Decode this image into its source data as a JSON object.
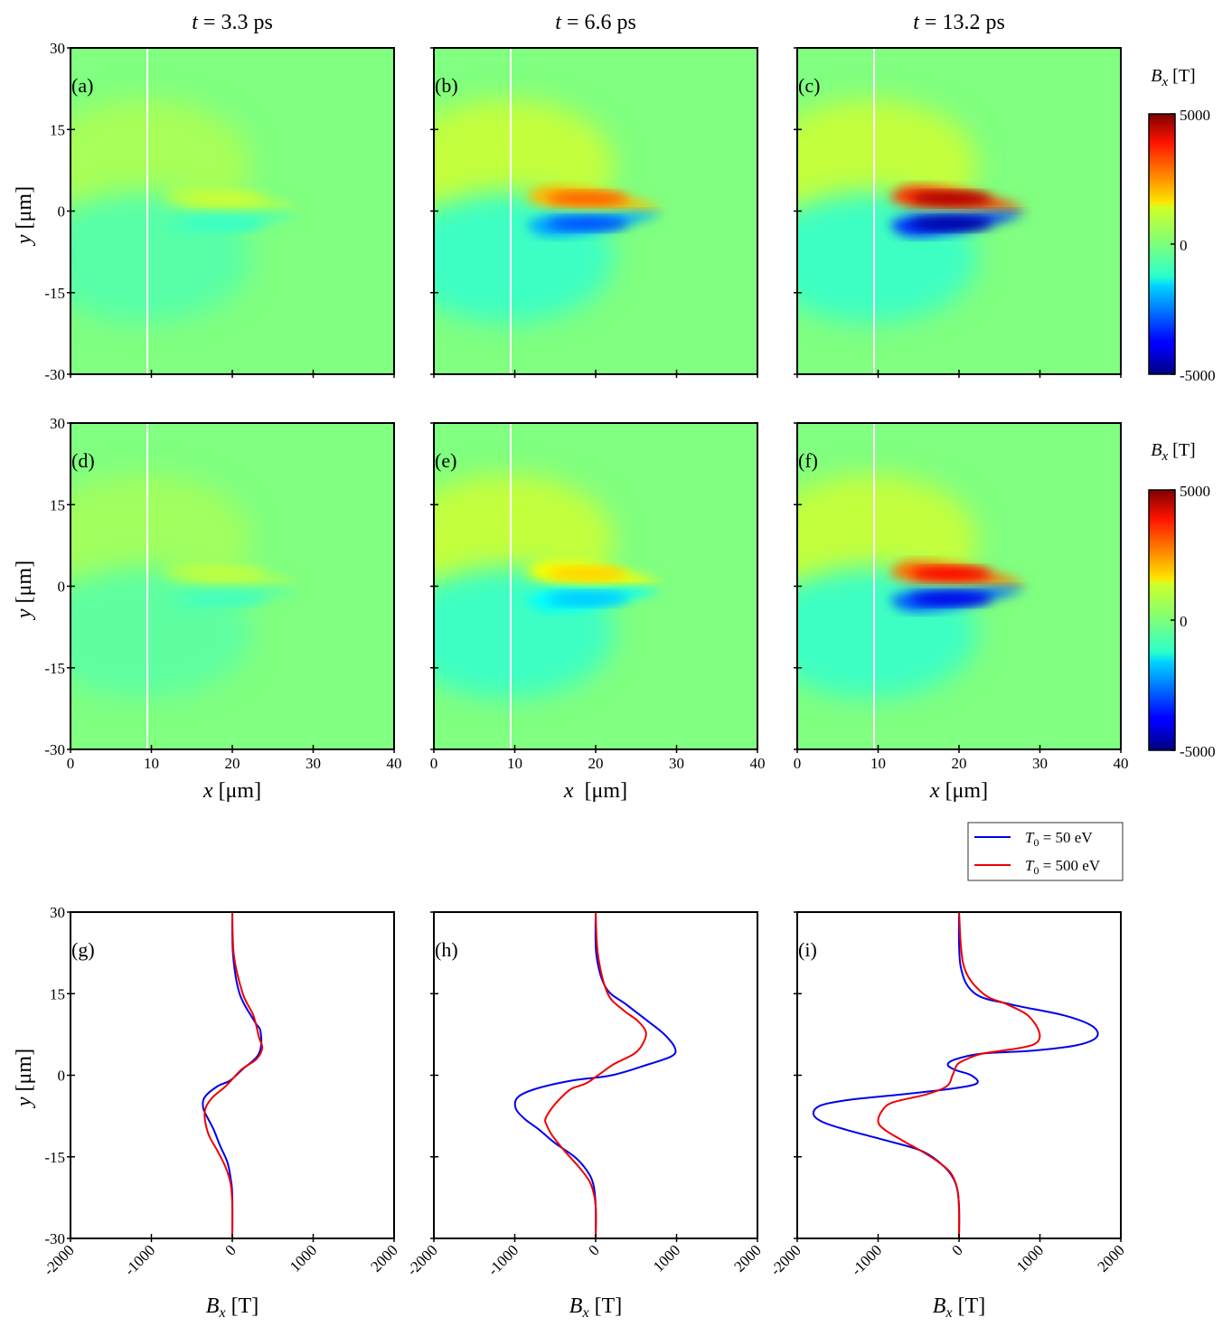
{
  "figure": {
    "column_titles": [
      {
        "var": "t",
        "eq": " = ",
        "value": "3.3 ps"
      },
      {
        "var": "t",
        "eq": " = ",
        "value": "6.6 ps"
      },
      {
        "var": "t",
        "eq": " = ",
        "value": "13.2 ps"
      }
    ],
    "colorbar": {
      "title_var": "B",
      "title_sub": "x",
      "title_unit": " [T]",
      "max_label": "5000",
      "mid_label": "0",
      "min_label": "-5000",
      "colormap": "jet",
      "range": [
        -5000,
        5000
      ]
    },
    "legend": {
      "entries": [
        {
          "label_var": "T",
          "label_sub": "0",
          "label_rest": " = 50 eV",
          "color": "#0000ee"
        },
        {
          "label_var": "T",
          "label_sub": "0",
          "label_rest": " = 500 eV",
          "color": "#ee0000"
        }
      ]
    },
    "axis_titles": {
      "y_var": "y",
      "y_unit": " [μm]",
      "x_var": "x",
      "x_unit": " [μm]",
      "x_unit_wide": "  [μm]",
      "bx_var": "B",
      "bx_sub": "x",
      "bx_unit": " [T]"
    },
    "tick_labels": {
      "y": [
        "30",
        "15",
        "0",
        "-15",
        "-30"
      ],
      "x": [
        "0",
        "10",
        "20",
        "30",
        "40"
      ],
      "bx": [
        "-2000",
        "-1000",
        "0",
        "1000",
        "2000"
      ]
    }
  },
  "chart_data": [
    {
      "id": "a",
      "label": "(a)",
      "type": "heatmap",
      "time_ps": 3.3,
      "T0_eV": 50,
      "xlim": [
        0,
        40
      ],
      "ylim": [
        -30,
        30
      ],
      "x_ticks": [
        0,
        10,
        20,
        30,
        40
      ],
      "y_ticks": [
        -30,
        -15,
        0,
        15,
        30
      ],
      "vline_x": 9.5,
      "field": "Bx",
      "clim": [
        -5000,
        5000
      ],
      "peak_pos_T": 700,
      "peak_neg_T": -700
    },
    {
      "id": "b",
      "label": "(b)",
      "type": "heatmap",
      "time_ps": 6.6,
      "T0_eV": 50,
      "xlim": [
        0,
        40
      ],
      "ylim": [
        -30,
        30
      ],
      "x_ticks": [
        0,
        10,
        20,
        30,
        40
      ],
      "y_ticks": [
        -30,
        -15,
        0,
        15,
        30
      ],
      "vline_x": 9.5,
      "field": "Bx",
      "clim": [
        -5000,
        5000
      ],
      "peak_pos_T": 2800,
      "peak_neg_T": -3000
    },
    {
      "id": "c",
      "label": "(c)",
      "type": "heatmap",
      "time_ps": 13.2,
      "T0_eV": 50,
      "xlim": [
        0,
        40
      ],
      "ylim": [
        -30,
        30
      ],
      "x_ticks": [
        0,
        10,
        20,
        30,
        40
      ],
      "y_ticks": [
        -30,
        -15,
        0,
        15,
        30
      ],
      "vline_x": 9.5,
      "field": "Bx",
      "clim": [
        -5000,
        5000
      ],
      "peak_pos_T": 4600,
      "peak_neg_T": -4700
    },
    {
      "id": "d",
      "label": "(d)",
      "type": "heatmap",
      "time_ps": 3.3,
      "T0_eV": 500,
      "xlim": [
        0,
        40
      ],
      "ylim": [
        -30,
        30
      ],
      "x_ticks": [
        0,
        10,
        20,
        30,
        40
      ],
      "y_ticks": [
        -30,
        -15,
        0,
        15,
        30
      ],
      "vline_x": 9.5,
      "field": "Bx",
      "clim": [
        -5000,
        5000
      ],
      "peak_pos_T": 600,
      "peak_neg_T": -600
    },
    {
      "id": "e",
      "label": "(e)",
      "type": "heatmap",
      "time_ps": 6.6,
      "T0_eV": 500,
      "xlim": [
        0,
        40
      ],
      "ylim": [
        -30,
        30
      ],
      "x_ticks": [
        0,
        10,
        20,
        30,
        40
      ],
      "y_ticks": [
        -30,
        -15,
        0,
        15,
        30
      ],
      "vline_x": 9.5,
      "field": "Bx",
      "clim": [
        -5000,
        5000
      ],
      "peak_pos_T": 1700,
      "peak_neg_T": -1800
    },
    {
      "id": "f",
      "label": "(f)",
      "type": "heatmap",
      "time_ps": 13.2,
      "T0_eV": 500,
      "xlim": [
        0,
        40
      ],
      "ylim": [
        -30,
        30
      ],
      "x_ticks": [
        0,
        10,
        20,
        30,
        40
      ],
      "y_ticks": [
        -30,
        -15,
        0,
        15,
        30
      ],
      "vline_x": 9.5,
      "field": "Bx",
      "clim": [
        -5000,
        5000
      ],
      "peak_pos_T": 3800,
      "peak_neg_T": -4000
    },
    {
      "id": "g",
      "label": "(g)",
      "type": "line",
      "time_ps": 3.3,
      "xlim": [
        -2000,
        2000
      ],
      "ylim": [
        -30,
        30
      ],
      "x_ticks": [
        -2000,
        -1000,
        0,
        1000,
        2000
      ],
      "y_ticks": [
        -30,
        -15,
        0,
        15,
        30
      ],
      "series": [
        {
          "name": "T0 = 50 eV",
          "color": "#0000ee",
          "points": [
            [
              0,
              30
            ],
            [
              10,
              22
            ],
            [
              90,
              15
            ],
            [
              270,
              10
            ],
            [
              350,
              8
            ],
            [
              330,
              4
            ],
            [
              120,
              1
            ],
            [
              -30,
              -1
            ],
            [
              -180,
              -2
            ],
            [
              -340,
              -4
            ],
            [
              -360,
              -6
            ],
            [
              -300,
              -8
            ],
            [
              -230,
              -10
            ],
            [
              -150,
              -13
            ],
            [
              -60,
              -16
            ],
            [
              -20,
              -19
            ],
            [
              0,
              -22
            ],
            [
              0,
              -30
            ]
          ]
        },
        {
          "name": "T0 = 500 eV",
          "color": "#ee0000",
          "points": [
            [
              0,
              30
            ],
            [
              20,
              22
            ],
            [
              130,
              15
            ],
            [
              260,
              11
            ],
            [
              330,
              7
            ],
            [
              370,
              5
            ],
            [
              300,
              3
            ],
            [
              110,
              1
            ],
            [
              -80,
              -2
            ],
            [
              -240,
              -4
            ],
            [
              -330,
              -6
            ],
            [
              -340,
              -8
            ],
            [
              -290,
              -11
            ],
            [
              -180,
              -14
            ],
            [
              -80,
              -17
            ],
            [
              -20,
              -20
            ],
            [
              0,
              -24
            ],
            [
              0,
              -30
            ]
          ]
        }
      ]
    },
    {
      "id": "h",
      "label": "(h)",
      "type": "line",
      "time_ps": 6.6,
      "xlim": [
        -2000,
        2000
      ],
      "ylim": [
        -30,
        30
      ],
      "x_ticks": [
        -2000,
        -1000,
        0,
        1000,
        2000
      ],
      "y_ticks": [
        -30,
        -15,
        0,
        15,
        30
      ],
      "series": [
        {
          "name": "T0 = 50 eV",
          "color": "#0000ee",
          "points": [
            [
              0,
              30
            ],
            [
              10,
              22
            ],
            [
              130,
              16
            ],
            [
              380,
              13
            ],
            [
              640,
              10
            ],
            [
              850,
              7.5
            ],
            [
              980,
              5
            ],
            [
              940,
              3.5
            ],
            [
              650,
              2
            ],
            [
              200,
              0
            ],
            [
              -300,
              -1
            ],
            [
              -740,
              -2.5
            ],
            [
              -960,
              -4
            ],
            [
              -990,
              -6
            ],
            [
              -880,
              -8
            ],
            [
              -700,
              -10
            ],
            [
              -500,
              -12.5
            ],
            [
              -260,
              -15
            ],
            [
              -110,
              -17.5
            ],
            [
              -30,
              -20
            ],
            [
              0,
              -24
            ],
            [
              0,
              -30
            ]
          ]
        },
        {
          "name": "T0 = 500 eV",
          "color": "#ee0000",
          "points": [
            [
              0,
              30
            ],
            [
              30,
              22
            ],
            [
              150,
              15
            ],
            [
              340,
              12
            ],
            [
              520,
              10
            ],
            [
              620,
              8
            ],
            [
              590,
              6
            ],
            [
              480,
              4
            ],
            [
              220,
              2
            ],
            [
              30,
              0
            ],
            [
              -120,
              -1.5
            ],
            [
              -300,
              -2.5
            ],
            [
              -420,
              -4
            ],
            [
              -540,
              -6
            ],
            [
              -620,
              -8
            ],
            [
              -610,
              -9
            ],
            [
              -540,
              -11
            ],
            [
              -380,
              -14
            ],
            [
              -200,
              -17
            ],
            [
              -60,
              -20
            ],
            [
              0,
              -24
            ],
            [
              0,
              -30
            ]
          ]
        }
      ]
    },
    {
      "id": "i",
      "label": "(i)",
      "type": "line",
      "time_ps": 13.2,
      "xlim": [
        -2000,
        2000
      ],
      "ylim": [
        -30,
        30
      ],
      "x_ticks": [
        -2000,
        -1000,
        0,
        1000,
        2000
      ],
      "y_ticks": [
        -30,
        -15,
        0,
        15,
        30
      ],
      "series": [
        {
          "name": "T0 = 50 eV",
          "color": "#0000ee",
          "points": [
            [
              0,
              30
            ],
            [
              20,
              20
            ],
            [
              200,
              15
            ],
            [
              650,
              13
            ],
            [
              1300,
              11
            ],
            [
              1650,
              9
            ],
            [
              1700,
              7
            ],
            [
              1450,
              5.5
            ],
            [
              900,
              4.5
            ],
            [
              300,
              4
            ],
            [
              -30,
              3
            ],
            [
              -140,
              2
            ],
            [
              -50,
              1
            ],
            [
              150,
              0
            ],
            [
              220,
              -1.5
            ],
            [
              -100,
              -2.5
            ],
            [
              -700,
              -3.5
            ],
            [
              -1350,
              -4.5
            ],
            [
              -1700,
              -5.5
            ],
            [
              -1800,
              -7
            ],
            [
              -1700,
              -8.5
            ],
            [
              -1400,
              -10
            ],
            [
              -900,
              -12
            ],
            [
              -450,
              -14
            ],
            [
              -170,
              -17
            ],
            [
              -40,
              -20
            ],
            [
              0,
              -24
            ],
            [
              0,
              -30
            ]
          ]
        },
        {
          "name": "T0 = 500 eV",
          "color": "#ee0000",
          "points": [
            [
              0,
              30
            ],
            [
              60,
              20
            ],
            [
              300,
              15
            ],
            [
              600,
              13
            ],
            [
              850,
              11
            ],
            [
              990,
              8
            ],
            [
              960,
              6
            ],
            [
              750,
              5
            ],
            [
              300,
              4
            ],
            [
              100,
              3
            ],
            [
              -20,
              2
            ],
            [
              -80,
              0
            ],
            [
              -150,
              -2
            ],
            [
              -400,
              -3.5
            ],
            [
              -820,
              -5
            ],
            [
              -950,
              -6.5
            ],
            [
              -1000,
              -8.5
            ],
            [
              -920,
              -10
            ],
            [
              -700,
              -12
            ],
            [
              -460,
              -14
            ],
            [
              -250,
              -16
            ],
            [
              -100,
              -18
            ],
            [
              -20,
              -21
            ],
            [
              0,
              -25
            ],
            [
              0,
              -30
            ]
          ]
        }
      ]
    }
  ]
}
